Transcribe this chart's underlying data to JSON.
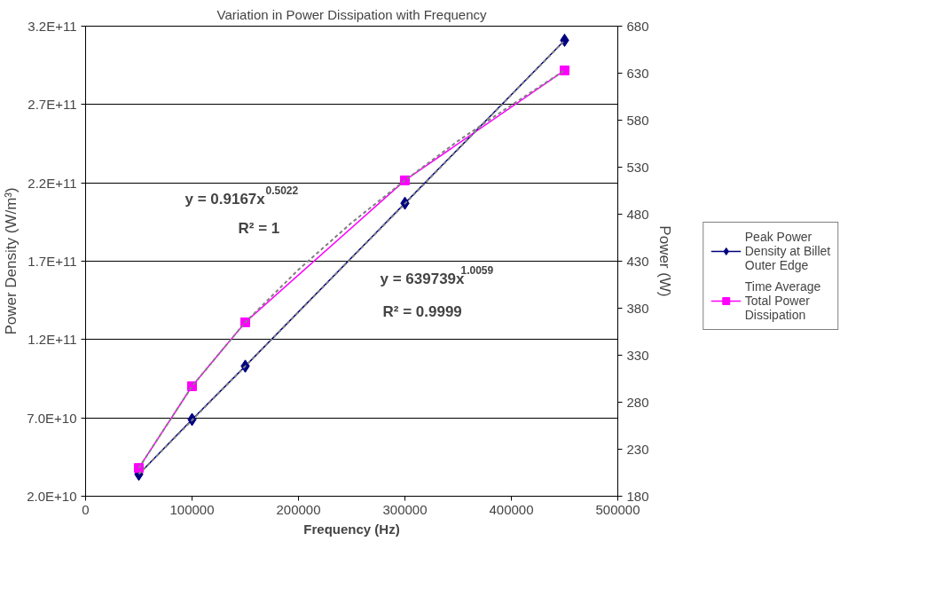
{
  "chart_data": {
    "type": "line",
    "title": "Variation in Power Dissipation with Frequency",
    "xlabel": "Frequency (Hz)",
    "ylabel": "Power Density (W/m³)",
    "y2label": "Power (W)",
    "x": [
      50000,
      100000,
      150000,
      300000,
      450000
    ],
    "series": [
      {
        "name": "Peak Power Density at Billet Outer Edge",
        "color": "#000080",
        "marker": "diamond",
        "values": [
          34000000000.0,
          69000000000.0,
          103000000000.0,
          207000000000.0,
          311000000000.0
        ]
      },
      {
        "name": "Time Average Total Power Dissipation",
        "color": "#ff00ff",
        "marker": "square",
        "axis": "y2",
        "values": [
          210,
          297,
          365,
          516,
          633
        ]
      },
      {
        "type": "line",
        "color": "#808080",
        "line_style": "dashed",
        "marker": "none",
        "x": [
          50000,
          100000,
          150000,
          200000,
          250000,
          300000,
          350000,
          400000,
          450000
        ],
        "values": [
          34100000000.0,
          68500000000.0,
          103000000000.0,
          137500000000.0,
          172100000000.0,
          206700000000.0,
          241400000000.0,
          276100000000.0,
          310800000000.0
        ]
      },
      {
        "type": "line",
        "color": "#808080",
        "line_style": "dashed",
        "marker": "none",
        "axis": "y2",
        "x": [
          50000,
          100000,
          150000,
          200000,
          250000,
          300000,
          350000,
          400000,
          450000
        ],
        "values": [
          210,
          297,
          365,
          421,
          471,
          516,
          558,
          596,
          633
        ]
      }
    ],
    "annotations": [
      "y = 0.9167x$^{0.5022}$",
      "R² = 1",
      "y = 639739x$^{1.0059}$",
      "R² = 0.9999"
    ],
    "xlim": [
      0,
      500000
    ],
    "xticks": [
      0,
      100000,
      200000,
      300000,
      400000,
      500000
    ],
    "ylim": [
      20000000000.0,
      320000000000.0
    ],
    "yticks": [
      {
        "value": 20000000000.0,
        "label": "2.0E+10"
      },
      {
        "value": 70000000000.0,
        "label": "7.0E+10"
      },
      {
        "value": 120000000000.0,
        "label": "1.2E+11"
      },
      {
        "value": 170000000000.0,
        "label": "1.7E+11"
      },
      {
        "value": 220000000000.0,
        "label": "2.2E+11"
      },
      {
        "value": 270000000000.0,
        "label": "2.7E+11"
      },
      {
        "value": 320000000000.0,
        "label": "3.2E+11"
      }
    ],
    "y2lim": [
      180,
      680
    ],
    "y2ticks": [
      180,
      230,
      280,
      330,
      380,
      430,
      480,
      530,
      580,
      630,
      680
    ],
    "grid": "y",
    "legend": "right",
    "line_style": "solid"
  }
}
